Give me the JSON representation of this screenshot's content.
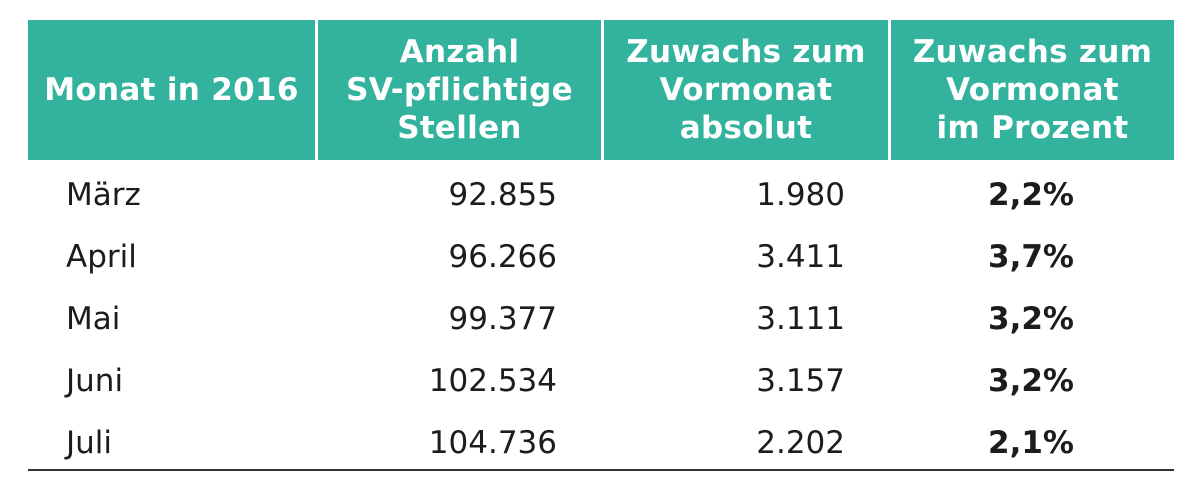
{
  "table": {
    "headers": [
      "Monat in 2016",
      "Anzahl\nSV-pflichtige\nStellen",
      "Zuwachs zum\nVormonat\nabsolut",
      "Zuwachs zum\nVormonat\nim Prozent"
    ],
    "rows": [
      {
        "monat": "März",
        "stellen": "92.855",
        "absolut": "1.980",
        "prozent": "2,2%"
      },
      {
        "monat": "April",
        "stellen": "96.266",
        "absolut": "3.411",
        "prozent": "3,7%"
      },
      {
        "monat": "Mai",
        "stellen": "99.377",
        "absolut": "3.111",
        "prozent": "3,2%"
      },
      {
        "monat": "Juni",
        "stellen": "102.534",
        "absolut": "3.157",
        "prozent": "3,2%"
      },
      {
        "monat": "Juli",
        "stellen": "104.736",
        "absolut": "2.202",
        "prozent": "2,1%"
      }
    ]
  },
  "colors": {
    "header_bg": "#33b39d",
    "header_text": "#ffffff",
    "body_text": "#1c1c1c",
    "rule": "#333333"
  }
}
